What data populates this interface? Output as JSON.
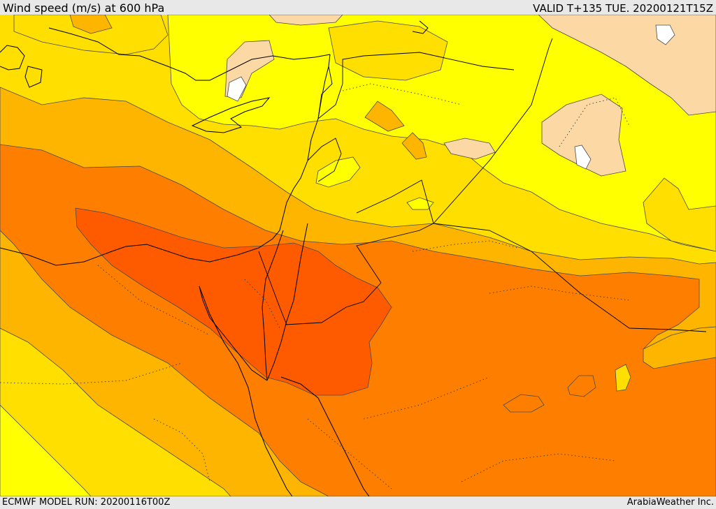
{
  "header": {
    "title": "Wind speed (m/s) at 600 hPa",
    "valid": "VALID T+135 TUE. 20200121T15Z"
  },
  "footer": {
    "model_run": "ECMWF MODEL RUN: 20200116T00Z",
    "credit": "ArabiaWeather Inc."
  },
  "map": {
    "colors": {
      "c_0_5": "#ffffff",
      "c_5_10": "#fcd9a4",
      "c_10_15": "#ffff00",
      "c_15_20": "#fedf00",
      "c_20_25": "#feb500",
      "c_25_30": "#fe7f00",
      "c_30_35": "#fe5b00",
      "contour": "#4a4a4a",
      "coast": "#000000"
    }
  }
}
